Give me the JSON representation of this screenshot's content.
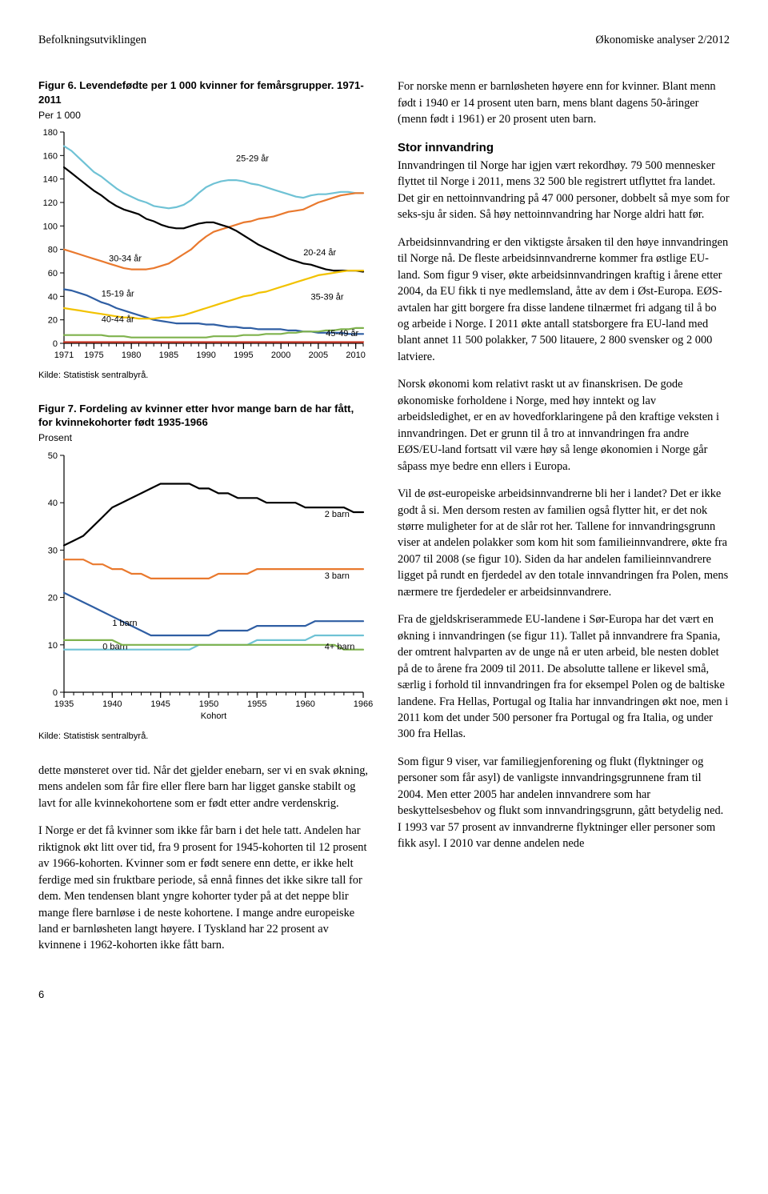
{
  "header": {
    "left": "Befolkningsutviklingen",
    "right": "Økonomiske analyser 2/2012"
  },
  "fig6": {
    "title_prefix": "Figur 6.",
    "title_rest": " Levendefødte per 1 000 kvinner for femårsgrupper. 1971-2011",
    "sub": "Per 1 000",
    "type": "line",
    "x_min": 1971,
    "x_max": 2011,
    "x_ticks": [
      1971,
      1975,
      1980,
      1985,
      1990,
      1995,
      2000,
      2005,
      2010
    ],
    "y_min": 0,
    "y_max": 180,
    "y_step": 20,
    "grid_color": "#d0d0d0",
    "axis_color": "#000000",
    "line_width": 2.2,
    "font_size_tick": 11,
    "font_size_label": 11,
    "series": [
      {
        "label": "25-29 år",
        "label_xy": [
          1994,
          155
        ],
        "color": "#6fc2d5",
        "y": [
          168,
          164,
          158,
          152,
          146,
          142,
          137,
          132,
          128,
          125,
          122,
          120,
          117,
          116,
          115,
          116,
          118,
          122,
          128,
          133,
          136,
          138,
          139,
          139,
          138,
          136,
          135,
          133,
          131,
          129,
          127,
          125,
          124,
          126,
          127,
          127,
          128,
          129,
          129,
          128,
          128
        ]
      },
      {
        "label": "30-34 år",
        "label_xy": [
          1977,
          70
        ],
        "color": "#e9792e",
        "y": [
          80,
          78,
          76,
          74,
          72,
          70,
          68,
          66,
          64,
          63,
          63,
          63,
          64,
          66,
          68,
          72,
          76,
          80,
          86,
          91,
          95,
          97,
          99,
          101,
          103,
          104,
          106,
          107,
          108,
          110,
          112,
          113,
          114,
          117,
          120,
          122,
          124,
          126,
          127,
          128,
          128
        ]
      },
      {
        "label": "20-24 år",
        "label_xy": [
          2003,
          75
        ],
        "color": "#000000",
        "y": [
          150,
          145,
          140,
          135,
          130,
          126,
          121,
          117,
          114,
          112,
          110,
          106,
          104,
          101,
          99,
          98,
          98,
          100,
          102,
          103,
          103,
          101,
          99,
          96,
          92,
          88,
          84,
          81,
          78,
          75,
          72,
          70,
          68,
          67,
          65,
          63,
          62,
          62,
          62,
          62,
          61
        ]
      },
      {
        "label": "15-19 år",
        "label_xy": [
          1976,
          40
        ],
        "color": "#2f5ea3",
        "y": [
          46,
          45,
          43,
          41,
          38,
          35,
          33,
          30,
          28,
          26,
          24,
          22,
          20,
          19,
          18,
          17,
          17,
          17,
          17,
          16,
          16,
          15,
          14,
          14,
          13,
          13,
          12,
          12,
          12,
          12,
          11,
          11,
          10,
          10,
          9,
          9,
          9,
          9,
          8,
          8,
          8
        ]
      },
      {
        "label": "35-39 år",
        "label_xy": [
          2004,
          37
        ],
        "color": "#f2c200",
        "y": [
          30,
          29,
          28,
          27,
          26,
          25,
          24,
          23,
          22,
          22,
          21,
          21,
          21,
          22,
          22,
          23,
          24,
          26,
          28,
          30,
          32,
          34,
          36,
          38,
          40,
          41,
          43,
          44,
          46,
          48,
          50,
          52,
          54,
          56,
          58,
          59,
          60,
          61,
          62,
          62,
          62
        ]
      },
      {
        "label": "40-44 år",
        "label_xy": [
          1976,
          18
        ],
        "color": "#7fb24d",
        "y": [
          7,
          7,
          7,
          7,
          7,
          7,
          6,
          6,
          6,
          5,
          5,
          5,
          5,
          5,
          5,
          5,
          5,
          5,
          5,
          5,
          6,
          6,
          6,
          6,
          7,
          7,
          7,
          8,
          8,
          8,
          9,
          9,
          10,
          10,
          10,
          11,
          11,
          12,
          12,
          13,
          13
        ]
      },
      {
        "label": "45-49 år",
        "label_xy": [
          2006,
          6
        ],
        "color": "#cc3b2a",
        "y": [
          1,
          1,
          1,
          1,
          1,
          1,
          1,
          1,
          1,
          1,
          1,
          1,
          1,
          1,
          1,
          1,
          1,
          1,
          1,
          1,
          1,
          1,
          1,
          1,
          1,
          1,
          1,
          1,
          1,
          1,
          1,
          1,
          1,
          1,
          1,
          1,
          1,
          1,
          1,
          1,
          1
        ]
      }
    ],
    "source": "Kilde: Statistisk sentralbyrå."
  },
  "fig7": {
    "title_prefix": "Figur 7.",
    "title_rest": " Fordeling av kvinner etter hvor mange barn de har fått, for kvinnekohorter født 1935-1966",
    "sub": "Prosent",
    "type": "line",
    "x_min": 1935,
    "x_max": 1966,
    "x_ticks": [
      1935,
      1940,
      1945,
      1950,
      1955,
      1960,
      1966
    ],
    "x_axis_title": "Kohort",
    "y_min": 0,
    "y_max": 50,
    "y_step": 10,
    "grid_color": "#d0d0d0",
    "axis_color": "#000000",
    "line_width": 2.2,
    "font_size_tick": 11,
    "font_size_label": 11,
    "series": [
      {
        "label": "2 barn",
        "label_xy": [
          1962,
          37
        ],
        "color": "#000000",
        "y": [
          31,
          32,
          33,
          35,
          37,
          39,
          40,
          41,
          42,
          43,
          44,
          44,
          44,
          44,
          43,
          43,
          42,
          42,
          41,
          41,
          41,
          40,
          40,
          40,
          40,
          39,
          39,
          39,
          39,
          39,
          38,
          38
        ]
      },
      {
        "label": "3 barn",
        "label_xy": [
          1962,
          24
        ],
        "color": "#e9792e",
        "y": [
          28,
          28,
          28,
          27,
          27,
          26,
          26,
          25,
          25,
          24,
          24,
          24,
          24,
          24,
          24,
          24,
          25,
          25,
          25,
          25,
          26,
          26,
          26,
          26,
          26,
          26,
          26,
          26,
          26,
          26,
          26,
          26
        ]
      },
      {
        "label": "1 barn",
        "label_xy": [
          1940,
          14
        ],
        "color": "#2f5ea3",
        "y": [
          21,
          20,
          19,
          18,
          17,
          16,
          15,
          14,
          13,
          12,
          12,
          12,
          12,
          12,
          12,
          12,
          13,
          13,
          13,
          13,
          14,
          14,
          14,
          14,
          14,
          14,
          15,
          15,
          15,
          15,
          15,
          15
        ]
      },
      {
        "label": "0 barn",
        "label_xy": [
          1939,
          9
        ],
        "color": "#6fc2d5",
        "y": [
          9,
          9,
          9,
          9,
          9,
          9,
          9,
          9,
          9,
          9,
          9,
          9,
          9,
          9,
          10,
          10,
          10,
          10,
          10,
          10,
          11,
          11,
          11,
          11,
          11,
          11,
          12,
          12,
          12,
          12,
          12,
          12
        ]
      },
      {
        "label": "4+ barn",
        "label_xy": [
          1962,
          9
        ],
        "color": "#7fb24d",
        "y": [
          11,
          11,
          11,
          11,
          11,
          11,
          10,
          10,
          10,
          10,
          10,
          10,
          10,
          10,
          10,
          10,
          10,
          10,
          10,
          10,
          10,
          10,
          10,
          10,
          10,
          10,
          10,
          10,
          10,
          9,
          9,
          9
        ]
      }
    ],
    "source": "Kilde: Statistisk sentralbyrå."
  },
  "left_body": {
    "p1": "dette mønsteret over tid. Når det gjelder enebarn, ser vi en svak økning, mens andelen som får fire eller flere barn har ligget ganske stabilt og lavt for alle kvinnekohortene som er født etter andre verdenskrig.",
    "p2": "I Norge er det få kvinner som ikke får barn i det hele tatt. Andelen har riktignok økt litt over tid, fra 9 prosent for 1945-kohorten til 12 prosent av 1966-kohorten. Kvinner som er født senere enn dette, er ikke helt ferdige med sin fruktbare periode, så ennå finnes det ikke sikre tall for dem. Men tendensen blant yngre kohorter tyder på at det neppe blir mange flere barnløse i de neste kohortene. I mange andre europeiske land er barnløsheten langt høyere. I Tyskland har 22 prosent av kvinnene i 1962-kohorten ikke fått barn."
  },
  "right_body": {
    "p1": "For norske menn er barnløsheten høyere enn for kvinner. Blant menn født i 1940 er 14 prosent uten barn, mens blant dagens 50-åringer (menn født i 1961) er 20 prosent uten barn.",
    "head1": "Stor innvandring",
    "p2": "Innvandringen til Norge har igjen vært rekordhøy. 79 500 mennesker flyttet til Norge i 2011, mens 32 500 ble registrert utflyttet fra landet. Det gir en nettoinnvandring på 47 000 personer, dobbelt så mye som for seks-sju år siden. Så høy nettoinnvandring har Norge aldri hatt før.",
    "p3": "Arbeidsinnvandring er den viktigste årsaken til den høye innvandringen til Norge nå. De fleste arbeidsinnvandrerne kommer fra østlige EU-land. Som figur 9 viser, økte arbeidsinnvandringen kraftig i årene etter 2004, da EU fikk ti nye medlemsland, åtte av dem i Øst-Europa. EØS-avtalen har gitt borgere fra disse landene tilnærmet fri adgang til å bo og arbeide i Norge. I 2011 økte antall statsborgere fra EU-land med blant annet 11 500 polakker, 7 500 litauere, 2 800 svensker og 2 000 latviere.",
    "p4": "Norsk økonomi kom relativt raskt ut av finanskrisen. De gode økonomiske forholdene i Norge, med høy inntekt og lav arbeidsledighet, er en av hovedforklaringene på den kraftige veksten i innvandringen. Det er grunn til å tro at innvandringen fra andre EØS/EU-land fortsatt vil være høy så lenge økonomien i Norge går såpass mye bedre enn ellers i Europa.",
    "p5": "Vil de øst-europeiske arbeidsinnvandrerne bli her i landet? Det er ikke godt å si. Men dersom resten av familien også flytter hit, er det nok større muligheter for at de slår rot her. Tallene for innvandringsgrunn viser at andelen polakker som kom hit som familieinnvandrere, økte fra 2007 til 2008 (se figur 10). Siden da har andelen familieinnvandrere ligget på rundt en fjerdedel av den totale innvandringen fra Polen, mens nærmere tre fjerdedeler er arbeidsinnvandrere.",
    "p6": "Fra de gjeldskriserammede EU-landene i Sør-Europa har det vært en økning i innvandringen (se figur 11). Tallet på innvandrere fra Spania, der omtrent halvparten av de unge nå er uten arbeid, ble nesten doblet på de to årene fra 2009 til 2011. De absolutte tallene er likevel små, særlig i forhold til innvandringen fra for eksempel Polen og de baltiske landene. Fra Hellas, Portugal og Italia har innvandringen økt noe, men i 2011 kom det under 500 personer fra Portugal og fra Italia, og under 300 fra Hellas.",
    "p7": "Som figur 9 viser, var familiegjenforening og flukt (flyktninger og personer som får asyl) de vanligste innvandringsgrunnene fram til 2004. Men etter 2005 har andelen innvandrere som har beskyttelsesbehov og flukt som innvandringsgrunn, gått betydelig ned. I 1993 var 57 prosent av innvandrerne flyktninger eller personer som fikk asyl. I 2010 var denne andelen nede"
  },
  "page_num": "6"
}
